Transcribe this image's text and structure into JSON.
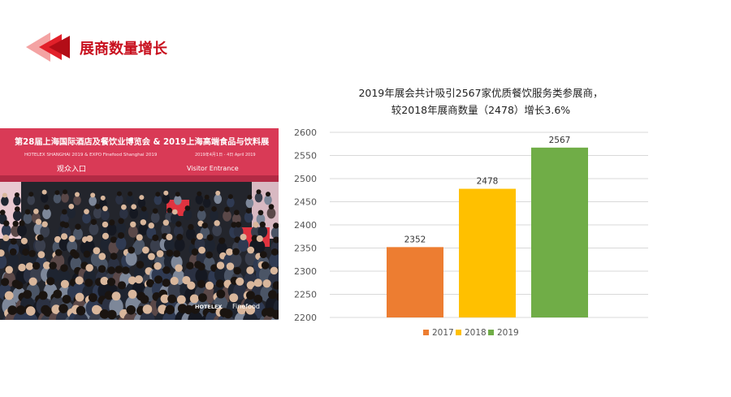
{
  "header": {
    "title": "展商数量增长",
    "accent_color": "#c8101e"
  },
  "photo": {
    "banner_line1": "第28届上海国际酒店及餐饮业博览会 & 2019上海高端食品与饮料展",
    "banner_line2": "HOTELEX SHANGHAI 2019  &  EXPO Finefood Shanghai 2019",
    "banner_dates": "2019年4月1日 - 4日 April 2019",
    "entrance_label": "观众入口",
    "entrance_en": "Visitor Entrance",
    "logo_hotelex": "HOTELEX",
    "logo_finefood": "Finefood"
  },
  "chart_caption": {
    "line1": "2019年展会共计吸引2567家优质餐饮服务类参展商，",
    "line2": "较2018年展商数量（2478）增长3.6%"
  },
  "chart_data": {
    "type": "bar",
    "categories": [
      "2017",
      "2018",
      "2019"
    ],
    "values": [
      2352,
      2478,
      2567
    ],
    "colors": [
      "#ed7d31",
      "#ffc000",
      "#70ad47"
    ],
    "ylim": [
      2200,
      2600
    ],
    "yticks": [
      2200,
      2250,
      2300,
      2350,
      2400,
      2450,
      2500,
      2550,
      2600
    ],
    "legend": [
      "2017",
      "2018",
      "2019"
    ],
    "legend_position": "bottom",
    "grid": true
  }
}
